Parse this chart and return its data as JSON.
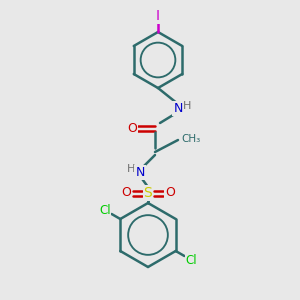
{
  "bg_color": "#e8e8e8",
  "bond_color": "#2d6b6b",
  "bond_width": 1.8,
  "atom_colors": {
    "I": "#cc00cc",
    "N": "#0000cc",
    "O": "#cc0000",
    "S": "#cccc00",
    "Cl": "#00cc00",
    "H": "#707070"
  },
  "figsize": [
    3.0,
    3.0
  ],
  "dpi": 100
}
